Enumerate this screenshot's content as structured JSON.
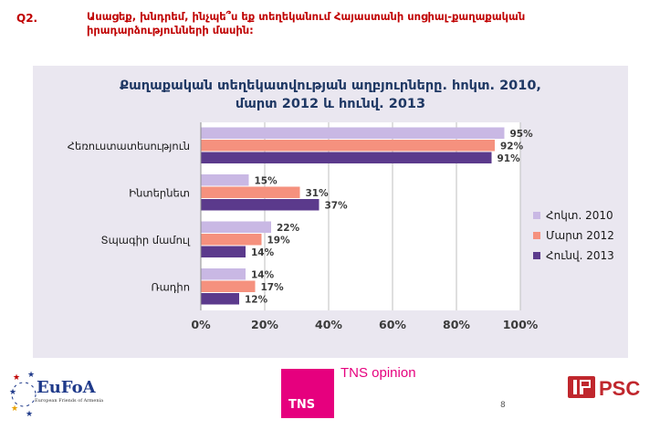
{
  "question": {
    "number": "Q2.",
    "text": "Ասացեք, խնդրեմ, ինչպե՞ս եք տեղեկանում Հայաստանի սոցիալ-քաղաքական իրադարձությունների մասին:"
  },
  "chart_data": {
    "type": "bar",
    "orientation": "horizontal",
    "title": "Քաղաքական տեղեկատվության աղբյուրները. հոկտ. 2010, մարտ 2012 և հունվ. 2013",
    "title_lines": [
      "Քաղաքական տեղեկատվության աղբյուրները. հոկտ. 2010,",
      "մարտ 2012 և հունվ. 2013"
    ],
    "categories": [
      "Հեռուստատեսություն",
      "Ինտերնետ",
      "Տպագիր մամուլ",
      "Ռադիո"
    ],
    "series": [
      {
        "name": "Հոկտ. 2010",
        "color": "#c9b8e4",
        "values": [
          95,
          15,
          22,
          14
        ]
      },
      {
        "name": "Մարտ 2012",
        "color": "#f5917e",
        "values": [
          92,
          31,
          19,
          17
        ]
      },
      {
        "name": "Հունվ. 2013",
        "color": "#5b3a8c",
        "values": [
          91,
          37,
          14,
          12
        ]
      }
    ],
    "xlim": [
      0,
      100
    ],
    "x_ticks": [
      "0%",
      "20%",
      "40%",
      "60%",
      "80%",
      "100%"
    ],
    "value_suffix": "%",
    "grid": true,
    "legend_position": "right"
  },
  "footer": {
    "eufoa_name": "EuFoA",
    "eufoa_subtitle": "European Friends of Armenia",
    "tns_box": "TNS",
    "tns_opinion": "TNS opinion",
    "page_number": "8",
    "ipsc": "IPSC"
  }
}
